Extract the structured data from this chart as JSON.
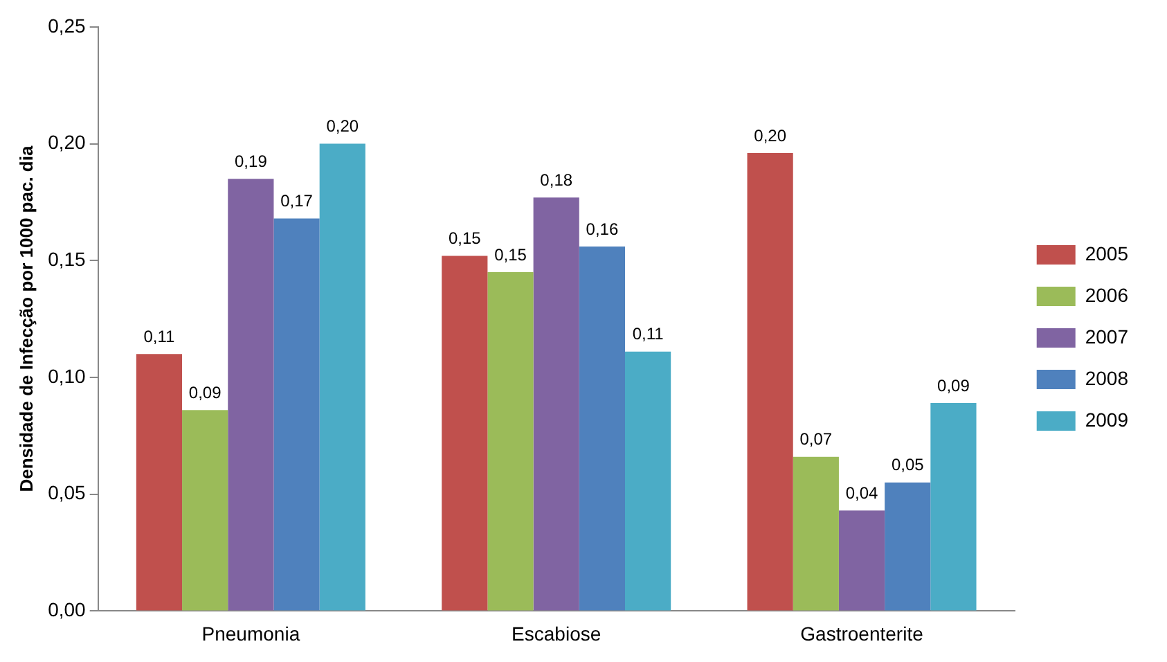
{
  "chart_data": {
    "type": "bar",
    "ylabel": "Densidade de Infecção por 1000 pac. dia",
    "categories": [
      "Pneumonia",
      "Escabiose",
      "Gastroenterite"
    ],
    "series": [
      {
        "name": "2005",
        "color": "#c0504d",
        "values": [
          0.11,
          0.152,
          0.196
        ],
        "value_labels": [
          "0,11",
          "0,15",
          "0,20"
        ]
      },
      {
        "name": "2006",
        "color": "#9bbb59",
        "values": [
          0.086,
          0.145,
          0.066
        ],
        "value_labels": [
          "0,09",
          "0,15",
          "0,07"
        ]
      },
      {
        "name": "2007",
        "color": "#8064a2",
        "values": [
          0.185,
          0.177,
          0.043
        ],
        "value_labels": [
          "0,19",
          "0,18",
          "0,04"
        ]
      },
      {
        "name": "2008",
        "color": "#4f81bd",
        "values": [
          0.168,
          0.156,
          0.055
        ],
        "value_labels": [
          "0,17",
          "0,16",
          "0,05"
        ]
      },
      {
        "name": "2009",
        "color": "#4bacc6",
        "values": [
          0.2,
          0.111,
          0.089
        ],
        "value_labels": [
          "0,20",
          "0,11",
          "0,09"
        ]
      }
    ],
    "ylim": [
      0,
      0.25
    ],
    "yticks": [
      {
        "value": 0,
        "label": "0,00"
      },
      {
        "value": 0.05,
        "label": "0,05"
      },
      {
        "value": 0.1,
        "label": "0,10"
      },
      {
        "value": 0.15,
        "label": "0,15"
      },
      {
        "value": 0.2,
        "label": "0,20"
      },
      {
        "value": 0.25,
        "label": "0,25"
      }
    ],
    "grid": false,
    "legend": "right"
  }
}
